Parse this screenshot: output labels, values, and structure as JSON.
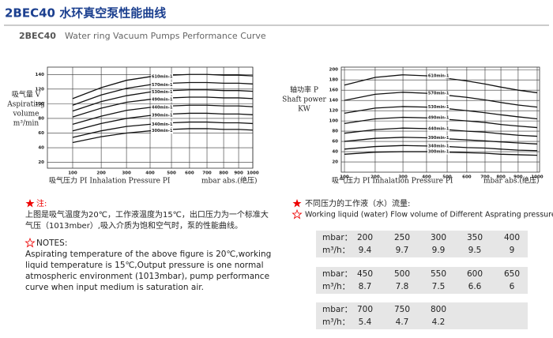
{
  "header": {
    "title": "2BEC40 水环真空泵性能曲线",
    "subtitle_model": "2BEC40",
    "subtitle": "Water ring Vacuum Pumps Performance Curve"
  },
  "chart_data": [
    {
      "type": "line",
      "ylabel": [
        "吸气量 V",
        "Aspirating",
        "volume",
        "m³/min"
      ],
      "xlabel": "吸气压力 PI Inhalation Pressure PI",
      "xunit": "mbar abs.(绝压)",
      "x": [
        100,
        200,
        300,
        400,
        500,
        600,
        700,
        800,
        900,
        1000
      ],
      "xlim": [
        50,
        1000
      ],
      "xticks": [
        100,
        200,
        300,
        400,
        500,
        600,
        700,
        800,
        900,
        1000
      ],
      "ylim": [
        12,
        150
      ],
      "yticks": [
        20,
        40,
        60,
        80,
        100,
        120,
        140
      ],
      "grid": true,
      "series": [
        {
          "name": "610min-1",
          "color": "#111111",
          "values": [
            107,
            122,
            132,
            137,
            139,
            140,
            140,
            139,
            139,
            138
          ]
        },
        {
          "name": "570min-1",
          "color": "#111111",
          "values": [
            98,
            112,
            121,
            126,
            128,
            129,
            129,
            128,
            128,
            127
          ]
        },
        {
          "name": "530min-1",
          "color": "#111111",
          "values": [
            90,
            103,
            111,
            116,
            118,
            119,
            119,
            118,
            118,
            117
          ]
        },
        {
          "name": "490min-1",
          "color": "#111111",
          "values": [
            82,
            94,
            102,
            106,
            108,
            109,
            109,
            108,
            108,
            107
          ]
        },
        {
          "name": "440min-1",
          "color": "#111111",
          "values": [
            72,
            83,
            91,
            95,
            97,
            98,
            98,
            97,
            97,
            96
          ]
        },
        {
          "name": "390min-1",
          "color": "#111111",
          "values": [
            63,
            73,
            80,
            84,
            86,
            87,
            87,
            86,
            86,
            85
          ]
        },
        {
          "name": "340min-1",
          "color": "#111111",
          "values": [
            54,
            63,
            69,
            72,
            74,
            75,
            75,
            74,
            74,
            73
          ]
        },
        {
          "name": "300min-1",
          "color": "#111111",
          "values": [
            47,
            55,
            60,
            63,
            65,
            66,
            66,
            65,
            65,
            64
          ]
        }
      ]
    },
    {
      "type": "line",
      "ylabel": [
        "轴功率 P",
        "Shaft power",
        "KW"
      ],
      "xlabel": "吸气压力 PI Inhalation Pressure PI",
      "xunit": "mbar abs.(绝压)",
      "x": [
        100,
        200,
        300,
        400,
        500,
        600,
        700,
        800,
        900,
        1000
      ],
      "xlim": [
        95,
        1010
      ],
      "xticks": [
        100,
        200,
        300,
        400,
        500,
        600,
        700,
        800,
        900,
        1000
      ],
      "ylim": [
        0,
        205
      ],
      "yticks": [
        20,
        40,
        60,
        80,
        100,
        120,
        140,
        160,
        180,
        200
      ],
      "grid": true,
      "series": [
        {
          "name": "610min-1",
          "color": "#111111",
          "values": [
            170,
            185,
            190,
            188,
            183,
            178,
            172,
            166,
            160,
            155
          ]
        },
        {
          "name": "570min-1",
          "color": "#111111",
          "values": [
            140,
            152,
            156,
            154,
            150,
            146,
            141,
            136,
            131,
            127
          ]
        },
        {
          "name": "530min-1",
          "color": "#111111",
          "values": [
            115,
            125,
            128,
            127,
            124,
            120,
            116,
            112,
            108,
            104
          ]
        },
        {
          "name": "490min-1",
          "color": "#111111",
          "values": [
            95,
            104,
            107,
            106,
            103,
            100,
            97,
            93,
            90,
            87
          ]
        },
        {
          "name": "440min-1",
          "color": "#111111",
          "values": [
            76,
            83,
            86,
            85,
            83,
            80,
            78,
            75,
            72,
            70
          ]
        },
        {
          "name": "390min-1",
          "color": "#111111",
          "values": [
            60,
            66,
            68,
            67,
            65,
            63,
            61,
            59,
            57,
            55
          ]
        },
        {
          "name": "340min-1",
          "color": "#111111",
          "values": [
            45,
            50,
            52,
            51,
            50,
            48,
            47,
            45,
            43,
            42
          ]
        },
        {
          "name": "300min-1",
          "color": "#111111",
          "values": [
            35,
            39,
            40,
            40,
            39,
            38,
            37,
            35,
            34,
            33
          ]
        }
      ]
    }
  ],
  "notes": {
    "cn_heading": "注:",
    "cn_text": [
      "上图是吸气温度为20℃，工作液温度为15℃，出口压力为一个标准大",
      "气压（1013mber）,吸入介质为饱和空气时，泵的性能曲线。"
    ],
    "en_heading": "NOTES:",
    "en_text": [
      "Aspirating temperature of the above figure is 20℃,working",
      "liquid temperature is 15℃,Output pressure is one normal",
      "atmospheric environment (1013mbar), pump performance",
      "curve when input medium is saturation air."
    ]
  },
  "flow": {
    "cn_heading": "不同压力的工作液（水）流量:",
    "en_heading": "Working liquid (water) Flow volume of Different Asprating pressure",
    "row_labels": [
      "mbar：",
      "m³/h："
    ],
    "tables": [
      {
        "mbar": [
          200,
          250,
          300,
          350,
          400
        ],
        "flow": [
          9.4,
          9.7,
          9.9,
          9.5,
          9
        ]
      },
      {
        "mbar": [
          450,
          500,
          550,
          600,
          650
        ],
        "flow": [
          8.7,
          7.8,
          7.5,
          6.6,
          6
        ]
      },
      {
        "mbar": [
          700,
          750,
          800
        ],
        "flow": [
          5.4,
          4.7,
          4.2
        ]
      }
    ]
  }
}
